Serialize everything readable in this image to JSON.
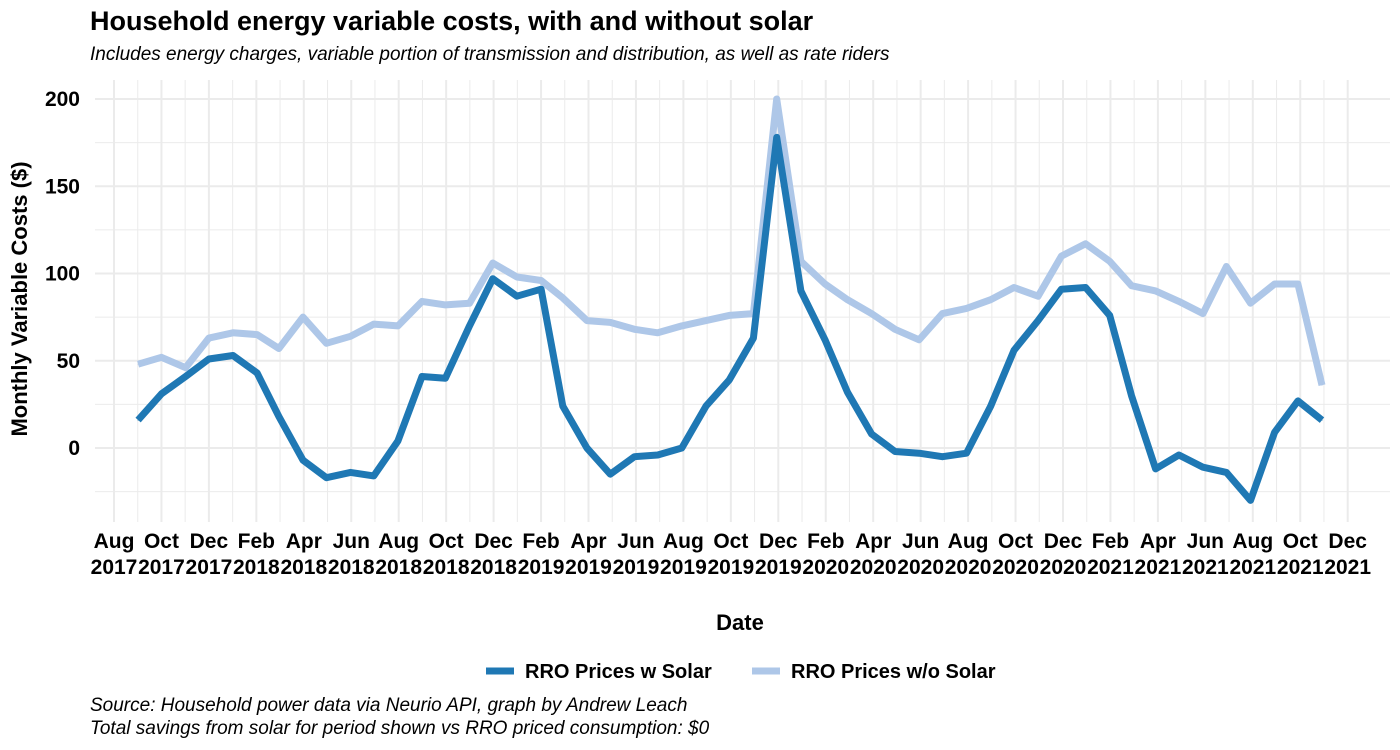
{
  "title": "Household energy variable costs, with and without solar",
  "subtitle": "Includes energy charges, variable portion of transmission and distribution, as well as rate riders",
  "caption_lines": [
    "Source: Household power data via Neurio API, graph by Andrew Leach",
    "Total savings from solar for period shown vs RRO priced consumption: $0"
  ],
  "chart_data": {
    "type": "line",
    "xlabel": "Date",
    "ylabel": "Monthly Variable Costs ($)",
    "ylim": [
      -40,
      200
    ],
    "y_ticks": [
      0,
      50,
      100,
      150,
      200
    ],
    "grid": true,
    "legend_position": "bottom",
    "x_tick_labels": [
      [
        "Aug",
        "2017"
      ],
      [
        "Oct",
        "2017"
      ],
      [
        "Dec",
        "2017"
      ],
      [
        "Feb",
        "2018"
      ],
      [
        "Apr",
        "2018"
      ],
      [
        "Jun",
        "2018"
      ],
      [
        "Aug",
        "2018"
      ],
      [
        "Oct",
        "2018"
      ],
      [
        "Dec",
        "2018"
      ],
      [
        "Feb",
        "2019"
      ],
      [
        "Apr",
        "2019"
      ],
      [
        "Jun",
        "2019"
      ],
      [
        "Aug",
        "2019"
      ],
      [
        "Oct",
        "2019"
      ],
      [
        "Dec",
        "2019"
      ],
      [
        "Feb",
        "2020"
      ],
      [
        "Apr",
        "2020"
      ],
      [
        "Jun",
        "2020"
      ],
      [
        "Aug",
        "2020"
      ],
      [
        "Oct",
        "2020"
      ],
      [
        "Dec",
        "2020"
      ],
      [
        "Feb",
        "2021"
      ],
      [
        "Apr",
        "2021"
      ],
      [
        "Jun",
        "2021"
      ],
      [
        "Aug",
        "2021"
      ],
      [
        "Oct",
        "2021"
      ],
      [
        "Dec",
        "2021"
      ]
    ],
    "x": [
      "2017-09",
      "2017-10",
      "2017-11",
      "2017-12",
      "2018-01",
      "2018-02",
      "2018-03",
      "2018-04",
      "2018-05",
      "2018-06",
      "2018-07",
      "2018-08",
      "2018-09",
      "2018-10",
      "2018-11",
      "2018-12",
      "2019-01",
      "2019-02",
      "2019-03",
      "2019-04",
      "2019-05",
      "2019-06",
      "2019-07",
      "2019-08",
      "2019-09",
      "2019-10",
      "2019-11",
      "2019-12",
      "2020-01",
      "2020-02",
      "2020-03",
      "2020-04",
      "2020-05",
      "2020-06",
      "2020-07",
      "2020-08",
      "2020-09",
      "2020-10",
      "2020-11",
      "2020-12",
      "2021-01",
      "2021-02",
      "2021-03",
      "2021-04",
      "2021-05",
      "2021-06",
      "2021-07",
      "2021-08",
      "2021-09",
      "2021-10",
      "2021-11"
    ],
    "series": [
      {
        "name": "RRO Prices w Solar",
        "color": "#1f78b4",
        "values": [
          16,
          31,
          41,
          51,
          53,
          43,
          18,
          -7,
          -17,
          -14,
          -16,
          4,
          41,
          40,
          70,
          97,
          87,
          91,
          24,
          0,
          -15,
          -5,
          -4,
          0,
          24,
          39,
          63,
          178,
          90,
          62,
          32,
          8,
          -2,
          -3,
          -5,
          -3,
          24,
          56,
          73,
          91,
          92,
          76,
          30,
          -12,
          -4,
          -11,
          -14,
          -30,
          9,
          27,
          16
        ]
      },
      {
        "name": "RRO Prices w/o Solar",
        "color": "#aec7e8",
        "values": [
          48,
          52,
          46,
          63,
          66,
          65,
          57,
          75,
          60,
          64,
          71,
          70,
          84,
          82,
          83,
          106,
          98,
          96,
          86,
          73,
          72,
          68,
          66,
          70,
          73,
          76,
          77,
          200,
          107,
          94,
          85,
          77,
          68,
          62,
          77,
          80,
          85,
          92,
          87,
          110,
          117,
          107,
          93,
          90,
          84,
          77,
          104,
          83,
          94,
          94,
          36
        ]
      }
    ]
  }
}
